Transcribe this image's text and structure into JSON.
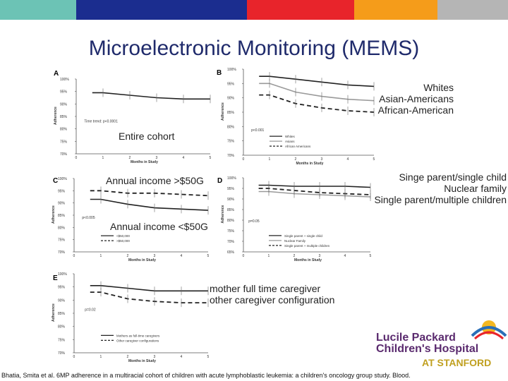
{
  "header": {
    "color_bar": [
      "#6cc3b5",
      "#1b2d8f",
      "#e8242b",
      "#f59c1a",
      "#b5b5b5"
    ],
    "title": "Microelectronic Monitoring (MEMS)"
  },
  "overlays": {
    "panel_b_legend": [
      "Whites",
      "Asian-Americans",
      "African-American"
    ],
    "entire_cohort": "Entire cohort",
    "income_high": "Annual income >$50G",
    "income_low": "Annual income <$50G",
    "panel_d_legend": [
      "Singe parent/single child",
      "Nuclear family",
      "Single parent/multiple children"
    ],
    "panel_e_legend": [
      "mother full time caregiver",
      "other caregiver configuration"
    ]
  },
  "citation": "Bhatia, Smita et al. 6MP adherence in a multiracial cohort of children with acute lymphoblastic leukemia: a children's oncology group study. Blood.",
  "logo": {
    "line1": "Lucile Packard",
    "line2": "Children's Hospital",
    "line3": "AT STANFORD"
  },
  "chart_data": [
    {
      "panel": "A",
      "type": "line",
      "x": [
        1,
        2,
        3,
        4,
        5
      ],
      "xlim": [
        0,
        5
      ],
      "xlabel": "Months in Study",
      "ylabel": "Adherence",
      "ylim": [
        70,
        100
      ],
      "yticks": [
        "100%",
        "95%",
        "90%",
        "85%",
        "80%",
        "75%",
        "70%"
      ],
      "series": [
        {
          "name": "Entire cohort",
          "style": "solid",
          "values": [
            94.5,
            93.5,
            92.5,
            92,
            92
          ]
        }
      ],
      "annotations": [
        "Time trend: p<0.0001"
      ]
    },
    {
      "panel": "B",
      "type": "line",
      "x": [
        1,
        2,
        3,
        4,
        5
      ],
      "xlim": [
        0,
        5
      ],
      "xlabel": "Months in Study",
      "ylabel": "Adherence",
      "ylim": [
        70,
        100
      ],
      "yticks": [
        "100%",
        "95%",
        "90%",
        "85%",
        "80%",
        "75%",
        "70%"
      ],
      "series": [
        {
          "name": "Whites",
          "style": "solid",
          "values": [
            97.5,
            96.5,
            95.5,
            94.5,
            94
          ]
        },
        {
          "name": "Asians",
          "style": "gray",
          "values": [
            95,
            92,
            90.5,
            89.5,
            89
          ]
        },
        {
          "name": "African Americans",
          "style": "dashed",
          "values": [
            91,
            88,
            86.5,
            85.5,
            85
          ]
        }
      ],
      "annotations": [
        "p<0.001"
      ]
    },
    {
      "panel": "C",
      "type": "line",
      "x": [
        1,
        2,
        3,
        4,
        5
      ],
      "xlim": [
        0,
        5
      ],
      "xlabel": "Months in Study",
      "ylabel": "Adherence",
      "ylim": [
        70,
        100
      ],
      "yticks": [
        "100%",
        "95%",
        "90%",
        "85%",
        "80%",
        "75%",
        "70%"
      ],
      "series": [
        {
          "name": "<$50,000",
          "style": "solid",
          "values": [
            91.5,
            89.5,
            88,
            87.5,
            87
          ]
        },
        {
          "name": ">$50,000",
          "style": "dashed",
          "values": [
            95,
            94,
            94,
            93.5,
            93
          ]
        }
      ],
      "annotations": [
        "p<0.005"
      ]
    },
    {
      "panel": "D",
      "type": "line",
      "x": [
        1,
        2,
        3,
        4,
        5
      ],
      "xlim": [
        0,
        5
      ],
      "xlabel": "Months in Study",
      "ylabel": "Adherence",
      "ylim": [
        65,
        100
      ],
      "yticks": [
        "100%",
        "95%",
        "90%",
        "85%",
        "80%",
        "75%",
        "70%",
        "65%"
      ],
      "series": [
        {
          "name": "Single parent + single child",
          "style": "solid",
          "values": [
            96.5,
            96,
            96,
            96,
            95.5
          ]
        },
        {
          "name": "Nuclear Family",
          "style": "gray",
          "values": [
            93.5,
            92.5,
            92,
            91.5,
            91
          ]
        },
        {
          "name": "Single parent + multiple children",
          "style": "dashed",
          "values": [
            95,
            94,
            93,
            92.5,
            92
          ]
        }
      ],
      "annotations": [
        "p=0.05"
      ]
    },
    {
      "panel": "E",
      "type": "line",
      "x": [
        1,
        2,
        3,
        4,
        5
      ],
      "xlim": [
        0,
        5
      ],
      "xlabel": "Months in Study",
      "ylabel": "Adherence",
      "ylim": [
        70,
        100
      ],
      "yticks": [
        "100%",
        "95%",
        "90%",
        "85%",
        "80%",
        "75%",
        "70%"
      ],
      "series": [
        {
          "name": "Mothers as full-time caregivers",
          "style": "solid",
          "values": [
            95.5,
            94.5,
            93.5,
            93.5,
            93.5
          ]
        },
        {
          "name": "Other caregiver configurations",
          "style": "dashed",
          "values": [
            93,
            90.5,
            89.5,
            89,
            89
          ]
        }
      ],
      "annotations": [
        "p=0.02"
      ]
    }
  ]
}
